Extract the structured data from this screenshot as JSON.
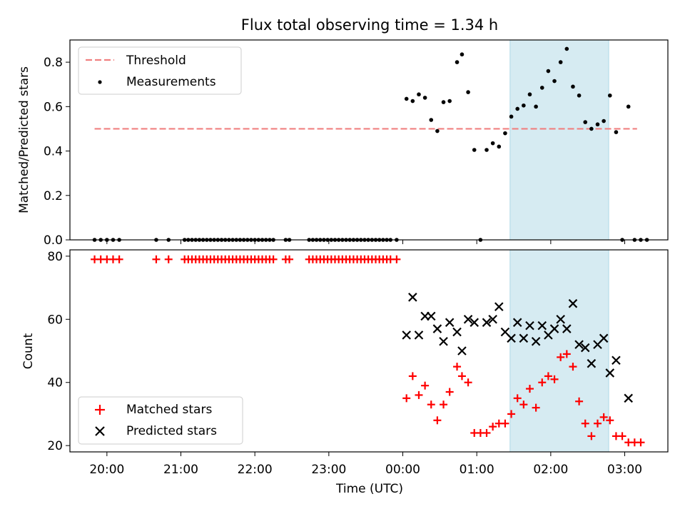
{
  "chart_data": [
    {
      "type": "scatter",
      "title": "Flux total observing time = 1.34 h",
      "xlabel": "",
      "ylabel": "Matched/Predicted stars",
      "ylim": [
        0,
        0.9
      ],
      "xlim": [
        "19:30",
        "03:35"
      ],
      "yticks": [
        "0.0",
        "0.2",
        "0.4",
        "0.6",
        "0.8"
      ],
      "highlight_span": [
        "01:27",
        "02:47"
      ],
      "legend": {
        "position": "top-left",
        "entries": [
          "Threshold",
          "Measurements"
        ]
      },
      "threshold": {
        "name": "Threshold",
        "value": 0.5,
        "x_range": [
          "19:50",
          "03:10"
        ]
      },
      "series": [
        {
          "name": "Measurements",
          "points": [
            [
              "19:50",
              0
            ],
            [
              "19:55",
              0
            ],
            [
              "20:00",
              0
            ],
            [
              "20:05",
              0
            ],
            [
              "20:10",
              0
            ],
            [
              "20:40",
              0
            ],
            [
              "20:50",
              0
            ],
            [
              "21:03",
              0
            ],
            [
              "21:06",
              0
            ],
            [
              "21:09",
              0
            ],
            [
              "21:12",
              0
            ],
            [
              "21:15",
              0
            ],
            [
              "21:18",
              0
            ],
            [
              "21:21",
              0
            ],
            [
              "21:24",
              0
            ],
            [
              "21:27",
              0
            ],
            [
              "21:30",
              0
            ],
            [
              "21:33",
              0
            ],
            [
              "21:36",
              0
            ],
            [
              "21:39",
              0
            ],
            [
              "21:42",
              0
            ],
            [
              "21:45",
              0
            ],
            [
              "21:48",
              0
            ],
            [
              "21:51",
              0
            ],
            [
              "21:54",
              0
            ],
            [
              "21:57",
              0
            ],
            [
              "22:00",
              0
            ],
            [
              "22:03",
              0
            ],
            [
              "22:06",
              0
            ],
            [
              "22:09",
              0
            ],
            [
              "22:12",
              0
            ],
            [
              "22:15",
              0
            ],
            [
              "22:25",
              0
            ],
            [
              "22:28",
              0
            ],
            [
              "22:44",
              0
            ],
            [
              "22:47",
              0
            ],
            [
              "22:50",
              0
            ],
            [
              "22:53",
              0
            ],
            [
              "22:56",
              0
            ],
            [
              "22:59",
              0
            ],
            [
              "23:02",
              0
            ],
            [
              "23:05",
              0
            ],
            [
              "23:08",
              0
            ],
            [
              "23:11",
              0
            ],
            [
              "23:14",
              0
            ],
            [
              "23:17",
              0
            ],
            [
              "23:20",
              0
            ],
            [
              "23:23",
              0
            ],
            [
              "23:26",
              0
            ],
            [
              "23:29",
              0
            ],
            [
              "23:32",
              0
            ],
            [
              "23:35",
              0
            ],
            [
              "23:38",
              0
            ],
            [
              "23:41",
              0
            ],
            [
              "23:44",
              0
            ],
            [
              "23:47",
              0
            ],
            [
              "23:50",
              0
            ],
            [
              "23:55",
              0
            ],
            [
              "00:03",
              0.635
            ],
            [
              "00:08",
              0.625
            ],
            [
              "00:13",
              0.655
            ],
            [
              "00:18",
              0.64
            ],
            [
              "00:23",
              0.54
            ],
            [
              "00:28",
              0.49
            ],
            [
              "00:33",
              0.62
            ],
            [
              "00:38",
              0.625
            ],
            [
              "00:44",
              0.8
            ],
            [
              "00:48",
              0.835
            ],
            [
              "00:53",
              0.665
            ],
            [
              "00:58",
              0.405
            ],
            [
              "01:03",
              0
            ],
            [
              "01:08",
              0.405
            ],
            [
              "01:13",
              0.435
            ],
            [
              "01:18",
              0.42
            ],
            [
              "01:23",
              0.48
            ],
            [
              "01:28",
              0.555
            ],
            [
              "01:33",
              0.59
            ],
            [
              "01:38",
              0.605
            ],
            [
              "01:43",
              0.655
            ],
            [
              "01:48",
              0.6
            ],
            [
              "01:53",
              0.685
            ],
            [
              "01:58",
              0.76
            ],
            [
              "02:03",
              0.715
            ],
            [
              "02:08",
              0.8
            ],
            [
              "02:13",
              0.86
            ],
            [
              "02:18",
              0.69
            ],
            [
              "02:23",
              0.65
            ],
            [
              "02:28",
              0.53
            ],
            [
              "02:33",
              0.5
            ],
            [
              "02:38",
              0.52
            ],
            [
              "02:43",
              0.535
            ],
            [
              "02:48",
              0.65
            ],
            [
              "02:53",
              0.485
            ],
            [
              "02:58",
              0
            ],
            [
              "03:03",
              0.6
            ],
            [
              "03:08",
              0
            ],
            [
              "03:13",
              0
            ],
            [
              "03:18",
              0
            ]
          ]
        }
      ]
    },
    {
      "type": "scatter",
      "title": "",
      "xlabel": "Time (UTC)",
      "ylabel": "Count",
      "ylim": [
        18,
        82
      ],
      "xlim": [
        "19:30",
        "03:35"
      ],
      "yticks": [
        "20",
        "40",
        "60",
        "80"
      ],
      "xticks": [
        "20:00",
        "21:00",
        "22:00",
        "23:00",
        "00:00",
        "01:00",
        "02:00",
        "03:00"
      ],
      "highlight_span": [
        "01:27",
        "02:47"
      ],
      "legend": {
        "position": "bottom-left",
        "entries": [
          "Matched stars",
          "Predicted stars"
        ]
      },
      "series": [
        {
          "name": "Matched stars",
          "marker": "plus",
          "points": [
            [
              "19:50",
              79
            ],
            [
              "19:55",
              79
            ],
            [
              "20:00",
              79
            ],
            [
              "20:05",
              79
            ],
            [
              "20:10",
              79
            ],
            [
              "20:40",
              79
            ],
            [
              "20:50",
              79
            ],
            [
              "21:03",
              79
            ],
            [
              "21:06",
              79
            ],
            [
              "21:09",
              79
            ],
            [
              "21:12",
              79
            ],
            [
              "21:15",
              79
            ],
            [
              "21:18",
              79
            ],
            [
              "21:21",
              79
            ],
            [
              "21:24",
              79
            ],
            [
              "21:27",
              79
            ],
            [
              "21:30",
              79
            ],
            [
              "21:33",
              79
            ],
            [
              "21:36",
              79
            ],
            [
              "21:39",
              79
            ],
            [
              "21:42",
              79
            ],
            [
              "21:45",
              79
            ],
            [
              "21:48",
              79
            ],
            [
              "21:51",
              79
            ],
            [
              "21:54",
              79
            ],
            [
              "21:57",
              79
            ],
            [
              "22:00",
              79
            ],
            [
              "22:03",
              79
            ],
            [
              "22:06",
              79
            ],
            [
              "22:09",
              79
            ],
            [
              "22:12",
              79
            ],
            [
              "22:15",
              79
            ],
            [
              "22:25",
              79
            ],
            [
              "22:28",
              79
            ],
            [
              "22:44",
              79
            ],
            [
              "22:47",
              79
            ],
            [
              "22:50",
              79
            ],
            [
              "22:53",
              79
            ],
            [
              "22:56",
              79
            ],
            [
              "22:59",
              79
            ],
            [
              "23:02",
              79
            ],
            [
              "23:05",
              79
            ],
            [
              "23:08",
              79
            ],
            [
              "23:11",
              79
            ],
            [
              "23:14",
              79
            ],
            [
              "23:17",
              79
            ],
            [
              "23:20",
              79
            ],
            [
              "23:23",
              79
            ],
            [
              "23:26",
              79
            ],
            [
              "23:29",
              79
            ],
            [
              "23:32",
              79
            ],
            [
              "23:35",
              79
            ],
            [
              "23:38",
              79
            ],
            [
              "23:41",
              79
            ],
            [
              "23:44",
              79
            ],
            [
              "23:47",
              79
            ],
            [
              "23:50",
              79
            ],
            [
              "23:55",
              79
            ],
            [
              "00:03",
              35
            ],
            [
              "00:08",
              42
            ],
            [
              "00:13",
              36
            ],
            [
              "00:18",
              39
            ],
            [
              "00:23",
              33
            ],
            [
              "00:28",
              28
            ],
            [
              "00:33",
              33
            ],
            [
              "00:38",
              37
            ],
            [
              "00:44",
              45
            ],
            [
              "00:48",
              42
            ],
            [
              "00:53",
              40
            ],
            [
              "00:58",
              24
            ],
            [
              "01:03",
              24
            ],
            [
              "01:08",
              24
            ],
            [
              "01:13",
              26
            ],
            [
              "01:18",
              27
            ],
            [
              "01:23",
              27
            ],
            [
              "01:28",
              30
            ],
            [
              "01:33",
              35
            ],
            [
              "01:38",
              33
            ],
            [
              "01:43",
              38
            ],
            [
              "01:48",
              32
            ],
            [
              "01:53",
              40
            ],
            [
              "01:58",
              42
            ],
            [
              "02:03",
              41
            ],
            [
              "02:08",
              48
            ],
            [
              "02:13",
              49
            ],
            [
              "02:18",
              45
            ],
            [
              "02:23",
              34
            ],
            [
              "02:28",
              27
            ],
            [
              "02:33",
              23
            ],
            [
              "02:38",
              27
            ],
            [
              "02:43",
              29
            ],
            [
              "02:48",
              28
            ],
            [
              "02:53",
              23
            ],
            [
              "02:58",
              23
            ],
            [
              "03:03",
              21
            ],
            [
              "03:08",
              21
            ],
            [
              "03:13",
              21
            ]
          ]
        },
        {
          "name": "Predicted stars",
          "marker": "x",
          "points": [
            [
              "00:03",
              55
            ],
            [
              "00:08",
              67
            ],
            [
              "00:13",
              55
            ],
            [
              "00:18",
              61
            ],
            [
              "00:23",
              61
            ],
            [
              "00:28",
              57
            ],
            [
              "00:33",
              53
            ],
            [
              "00:38",
              59
            ],
            [
              "00:44",
              56
            ],
            [
              "00:48",
              50
            ],
            [
              "00:53",
              60
            ],
            [
              "00:58",
              59
            ],
            [
              "01:08",
              59
            ],
            [
              "01:13",
              60
            ],
            [
              "01:18",
              64
            ],
            [
              "01:23",
              56
            ],
            [
              "01:28",
              54
            ],
            [
              "01:33",
              59
            ],
            [
              "01:38",
              54
            ],
            [
              "01:43",
              58
            ],
            [
              "01:48",
              53
            ],
            [
              "01:53",
              58
            ],
            [
              "01:58",
              55
            ],
            [
              "02:03",
              57
            ],
            [
              "02:08",
              60
            ],
            [
              "02:13",
              57
            ],
            [
              "02:18",
              65
            ],
            [
              "02:23",
              52
            ],
            [
              "02:28",
              51
            ],
            [
              "02:33",
              46
            ],
            [
              "02:38",
              52
            ],
            [
              "02:43",
              54
            ],
            [
              "02:48",
              43
            ],
            [
              "02:53",
              47
            ],
            [
              "03:03",
              35
            ]
          ]
        }
      ]
    }
  ],
  "colors": {
    "threshold": "#f08080",
    "measurements": "#000000",
    "matched": "#ff0000",
    "predicted": "#000000",
    "span": "#add8e6"
  }
}
